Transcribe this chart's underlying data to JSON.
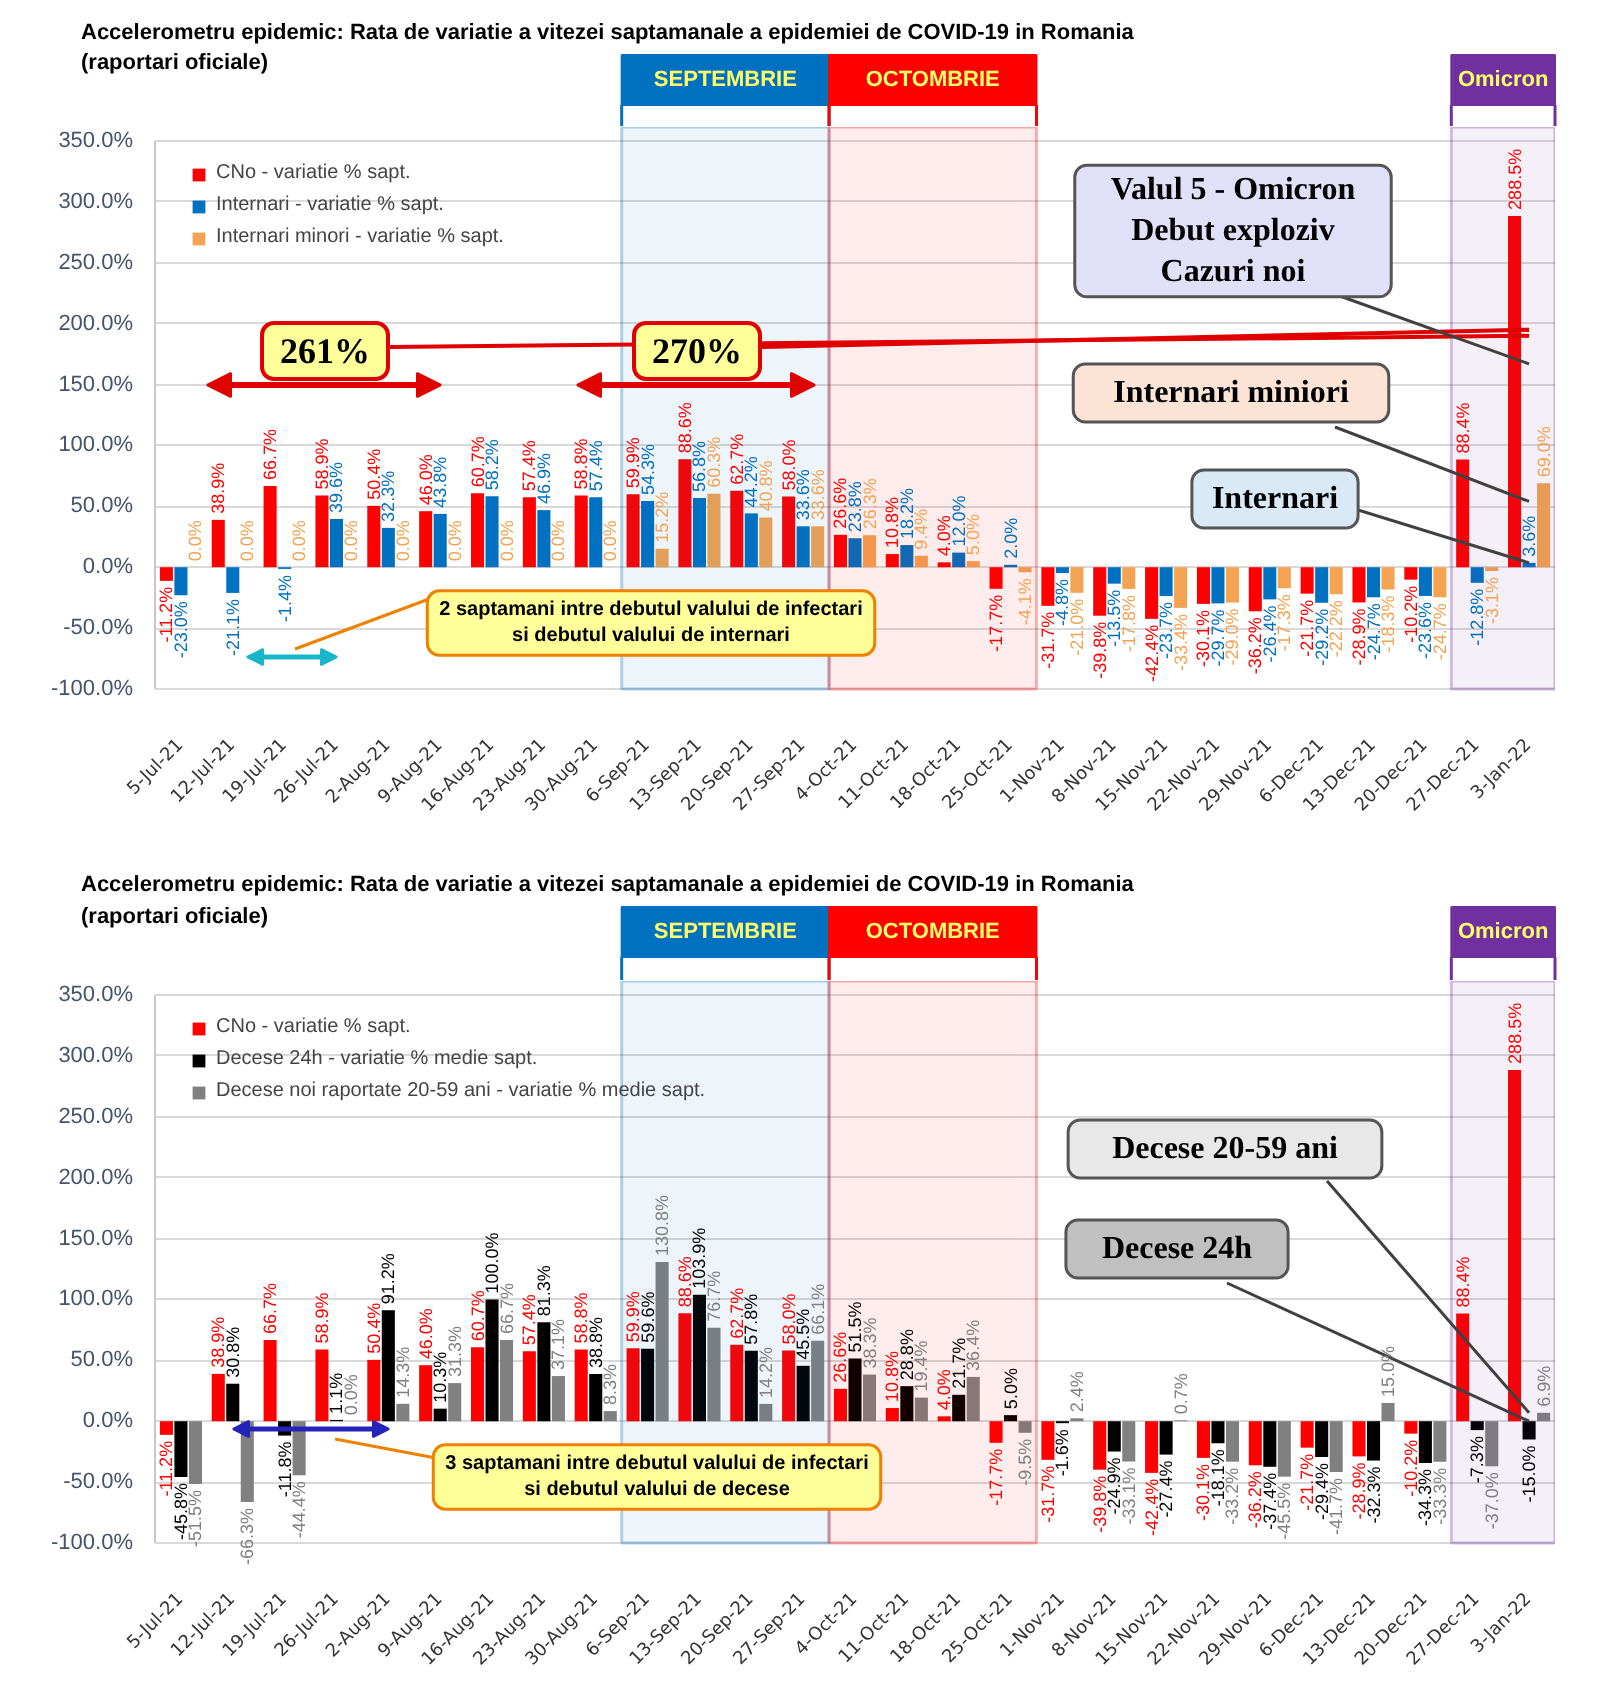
{
  "chart_data": [
    {
      "type": "bar",
      "title": "Accelerometru epidemic:  Rata de variatie a vitezei saptamanale a epidemiei de COVID-19 in Romania",
      "subtitle": "(raportari oficiale)",
      "categories": [
        "5-Jul-21",
        "12-Jul-21",
        "19-Jul-21",
        "26-Jul-21",
        "2-Aug-21",
        "9-Aug-21",
        "16-Aug-21",
        "23-Aug-21",
        "30-Aug-21",
        "6-Sep-21",
        "13-Sep-21",
        "20-Sep-21",
        "27-Sep-21",
        "4-Oct-21",
        "11-Oct-21",
        "18-Oct-21",
        "25-Oct-21",
        "1-Nov-21",
        "8-Nov-21",
        "15-Nov-21",
        "22-Nov-21",
        "29-Nov-21",
        "6-Dec-21",
        "13-Dec-21",
        "20-Dec-21",
        "27-Dec-21",
        "3-Jan-22"
      ],
      "series": [
        {
          "name": "CNo - variatie % sapt.",
          "color": "#ff0000",
          "values": [
            -11.2,
            38.9,
            66.7,
            58.9,
            50.4,
            46.0,
            60.7,
            57.4,
            58.8,
            59.9,
            88.6,
            62.7,
            58.0,
            26.6,
            10.8,
            4.0,
            -17.7,
            -31.7,
            -39.8,
            -42.4,
            -30.1,
            -36.2,
            -21.7,
            -28.9,
            -10.2,
            88.4,
            288.5
          ],
          "value_labels": [
            "-11.2%",
            "38.9%",
            "66.7%",
            "58.9%",
            "50.4%",
            "46.0%",
            "60.7%",
            "57.4%",
            "58.8%",
            "59.9%",
            "88.6%",
            "62.7%",
            "58.0%",
            "26.6%",
            "10.8%",
            "4.0%",
            "-17.7%",
            "-31.7%",
            "-39.8%",
            "-42.4%",
            "-30.1%",
            "-36.2%",
            "-21.7%",
            "-28.9%",
            "-10.2%",
            "88.4%",
            "288.5%"
          ]
        },
        {
          "name": "Internari - variatie % sapt.",
          "color": "#0070c0",
          "values": [
            -23.0,
            -21.1,
            -1.4,
            39.6,
            32.3,
            43.8,
            58.2,
            46.9,
            57.4,
            54.3,
            56.8,
            44.2,
            33.6,
            23.8,
            18.2,
            12.0,
            2.0,
            -4.8,
            -13.5,
            -23.7,
            -29.7,
            -26.4,
            -29.2,
            -24.7,
            -23.6,
            -12.8,
            3.6
          ],
          "value_labels": [
            "-23.0%",
            "-21.1%",
            "-1.4%",
            "39.6%",
            "32.3%",
            "43.8%",
            "58.2%",
            "46.9%",
            "57.4%",
            "54.3%",
            "56.8%",
            "44.2%",
            "33.6%",
            "23.8%",
            "18.2%",
            "12.0%",
            "2.0%",
            "-4.8%",
            "-13.5%",
            "-23.7%",
            "-29.7%",
            "-26.4%",
            "-29.2%",
            "-24.7%",
            "-23.6%",
            "-12.8%",
            "3.6%"
          ]
        },
        {
          "name": "Internari minori - variatie % sapt.",
          "color": "#f4a352",
          "values": [
            0.0,
            0.0,
            0.0,
            0.0,
            0.0,
            0.0,
            0.0,
            0.0,
            0.0,
            15.2,
            60.3,
            40.8,
            33.6,
            26.3,
            9.4,
            5.0,
            -4.1,
            -21.0,
            -17.8,
            -33.4,
            -29.0,
            -17.3,
            -22.2,
            -18.3,
            -24.7,
            -3.1,
            69.0
          ],
          "value_labels": [
            "0.0%",
            "0.0%",
            "0.0%",
            "0.0%",
            "0.0%",
            "0.0%",
            "0.0%",
            "0.0%",
            "0.0%",
            "15.2%",
            "60.3%",
            "40.8%",
            "33.6%",
            "26.3%",
            "9.4%",
            "5.0%",
            "-4.1%",
            "-21.0%",
            "-17.8%",
            "-33.4%",
            "-29.0%",
            "-17.3%",
            "-22.2%",
            "-18.3%",
            "-24.7%",
            "-3.1%",
            "69.0%"
          ]
        }
      ],
      "ylim": [
        -100,
        350
      ],
      "yticks": [
        {
          "value": -100,
          "label": "-100.0%"
        },
        {
          "value": -50,
          "label": "-50.0%"
        },
        {
          "value": 0,
          "label": "0.0%"
        },
        {
          "value": 50,
          "label": "50.0%"
        },
        {
          "value": 100,
          "label": "100.0%"
        },
        {
          "value": 150,
          "label": "150.0%"
        },
        {
          "value": 200,
          "label": "200.0%"
        },
        {
          "value": 250,
          "label": "250.0%"
        },
        {
          "value": 300,
          "label": "300.0%"
        },
        {
          "value": 350,
          "label": "350.0%"
        }
      ],
      "grid": "y",
      "legend": "top left",
      "bands": [
        {
          "axis": "x",
          "from": "6-Sep-21",
          "to": "27-Sep-21",
          "label": "SEPTEMBRIE",
          "color": "#0070c0"
        },
        {
          "axis": "x",
          "from": "4-Oct-21",
          "to": "25-Oct-21",
          "label": "OCTOMBRIE",
          "color": "#ff0000"
        },
        {
          "axis": "x",
          "from": "27-Dec-21",
          "to": "3-Jan-22",
          "label": "Omicron",
          "color": "#7030a0"
        }
      ],
      "annotations": [
        {
          "text": "261%",
          "x": "3-Jan-22",
          "y": 190
        },
        {
          "text": "270%",
          "x": "3-Jan-22",
          "y": 195
        },
        {
          "text": "Valul 5 - Omicron\nDebut exploziv\nCazuri noi",
          "x": "3-Jan-22",
          "y": 167
        },
        {
          "text": "Internari miniori",
          "x": "3-Jan-22",
          "y": 54
        },
        {
          "text": "Internari",
          "x": "3-Jan-22",
          "y": 3.6
        },
        "2 saptamani intre debutul valului de infectari\nsi debutul valului de internari"
      ]
    },
    {
      "type": "bar",
      "title": "Accelerometru epidemic:  Rata de variatie a vitezei saptamanale a epidemiei de COVID-19 in Romania",
      "subtitle": "(raportari oficiale)",
      "categories": [
        "5-Jul-21",
        "12-Jul-21",
        "19-Jul-21",
        "26-Jul-21",
        "2-Aug-21",
        "9-Aug-21",
        "16-Aug-21",
        "23-Aug-21",
        "30-Aug-21",
        "6-Sep-21",
        "13-Sep-21",
        "20-Sep-21",
        "27-Sep-21",
        "4-Oct-21",
        "11-Oct-21",
        "18-Oct-21",
        "25-Oct-21",
        "1-Nov-21",
        "8-Nov-21",
        "15-Nov-21",
        "22-Nov-21",
        "29-Nov-21",
        "6-Dec-21",
        "13-Dec-21",
        "20-Dec-21",
        "27-Dec-21",
        "3-Jan-22"
      ],
      "series": [
        {
          "name": "CNo - variatie % sapt.",
          "color": "#ff0000",
          "values": [
            -11.2,
            38.9,
            66.7,
            58.9,
            50.4,
            46.0,
            60.7,
            57.4,
            58.8,
            59.9,
            88.6,
            62.7,
            58.0,
            26.6,
            10.8,
            4.0,
            -17.7,
            -31.7,
            -39.8,
            -42.4,
            -30.1,
            -36.2,
            -21.7,
            -28.9,
            -10.2,
            88.4,
            288.5
          ],
          "value_labels": [
            "-11.2%",
            "38.9%",
            "66.7%",
            "58.9%",
            "50.4%",
            "46.0%",
            "60.7%",
            "57.4%",
            "58.8%",
            "59.9%",
            "88.6%",
            "62.7%",
            "58.0%",
            "26.6%",
            "10.8%",
            "4.0%",
            "-17.7%",
            "-31.7%",
            "-39.8%",
            "-42.4%",
            "-30.1%",
            "-36.2%",
            "-21.7%",
            "-28.9%",
            "-10.2%",
            "88.4%",
            "288.5%"
          ]
        },
        {
          "name": "Decese 24h - variatie % medie sapt.",
          "color": "#000000",
          "values": [
            -45.8,
            30.8,
            -11.8,
            1.1,
            91.2,
            10.3,
            100.0,
            81.3,
            38.8,
            59.6,
            103.9,
            57.8,
            45.5,
            51.5,
            28.8,
            21.7,
            5.0,
            -1.6,
            -24.9,
            -27.4,
            -18.1,
            -37.4,
            -29.4,
            -32.3,
            -34.3,
            -7.3,
            -15.0
          ],
          "value_labels": [
            "-45.8%",
            "30.8%",
            "-11.8%",
            "1.1%",
            "91.2%",
            "10.3%",
            "100.0%",
            "81.3%",
            "38.8%",
            "59.6%",
            "103.9%",
            "57.8%",
            "45.5%",
            "51.5%",
            "28.8%",
            "21.7%",
            "5.0%",
            "-1.6%",
            "-24.9%",
            "-27.4%",
            "-18.1%",
            "-37.4%",
            "-29.4%",
            "-32.3%",
            "-34.3%",
            "-7.3%",
            "-15.0%"
          ]
        },
        {
          "name": "Decese noi raportate 20-59 ani - variatie % medie sapt.",
          "color": "#808080",
          "values": [
            -51.5,
            -66.3,
            -44.4,
            0.0,
            14.3,
            31.3,
            66.7,
            37.1,
            8.3,
            130.8,
            76.7,
            14.2,
            66.1,
            38.3,
            19.4,
            36.4,
            -9.5,
            2.4,
            -33.1,
            0.7,
            -33.2,
            -45.5,
            -41.7,
            15.0,
            -33.3,
            -37.0,
            6.9
          ],
          "value_labels": [
            "-51.5%",
            "-66.3%",
            "-44.4%",
            "0.0%",
            "14.3%",
            "31.3%",
            "66.7%",
            "37.1%",
            "8.3%",
            "130.8%",
            "76.7%",
            "14.2%",
            "66.1%",
            "38.3%",
            "19.4%",
            "36.4%",
            "-9.5%",
            "2.4%",
            "-33.1%",
            "0.7%",
            "-33.2%",
            "-45.5%",
            "-41.7%",
            "15.0%",
            "-33.3%",
            "-37.0%",
            "6.9%"
          ]
        }
      ],
      "ylim": [
        -100,
        350
      ],
      "yticks": [
        {
          "value": -100,
          "label": "-100.0%"
        },
        {
          "value": -50,
          "label": "-50.0%"
        },
        {
          "value": 0,
          "label": "0.0%"
        },
        {
          "value": 50,
          "label": "50.0%"
        },
        {
          "value": 100,
          "label": "100.0%"
        },
        {
          "value": 150,
          "label": "150.0%"
        },
        {
          "value": 200,
          "label": "200.0%"
        },
        {
          "value": 250,
          "label": "250.0%"
        },
        {
          "value": 300,
          "label": "300.0%"
        },
        {
          "value": 350,
          "label": "350.0%"
        }
      ],
      "grid": "y",
      "legend": "top left",
      "bands": [
        {
          "axis": "x",
          "from": "6-Sep-21",
          "to": "27-Sep-21",
          "label": "SEPTEMBRIE",
          "color": "#0070c0"
        },
        {
          "axis": "x",
          "from": "4-Oct-21",
          "to": "25-Oct-21",
          "label": "OCTOMBRIE",
          "color": "#ff0000"
        },
        {
          "axis": "x",
          "from": "27-Dec-21",
          "to": "3-Jan-22",
          "label": "Omicron",
          "color": "#7030a0"
        }
      ],
      "annotations": [
        {
          "text": "Decese 20-59 ani",
          "x": "3-Jan-22",
          "y": 6.9
        },
        {
          "text": "Decese 24h",
          "x": "3-Jan-22",
          "y": 0
        },
        "3 saptamani intre debutul valului de infectari\nsi debutul valului de decese"
      ]
    }
  ]
}
